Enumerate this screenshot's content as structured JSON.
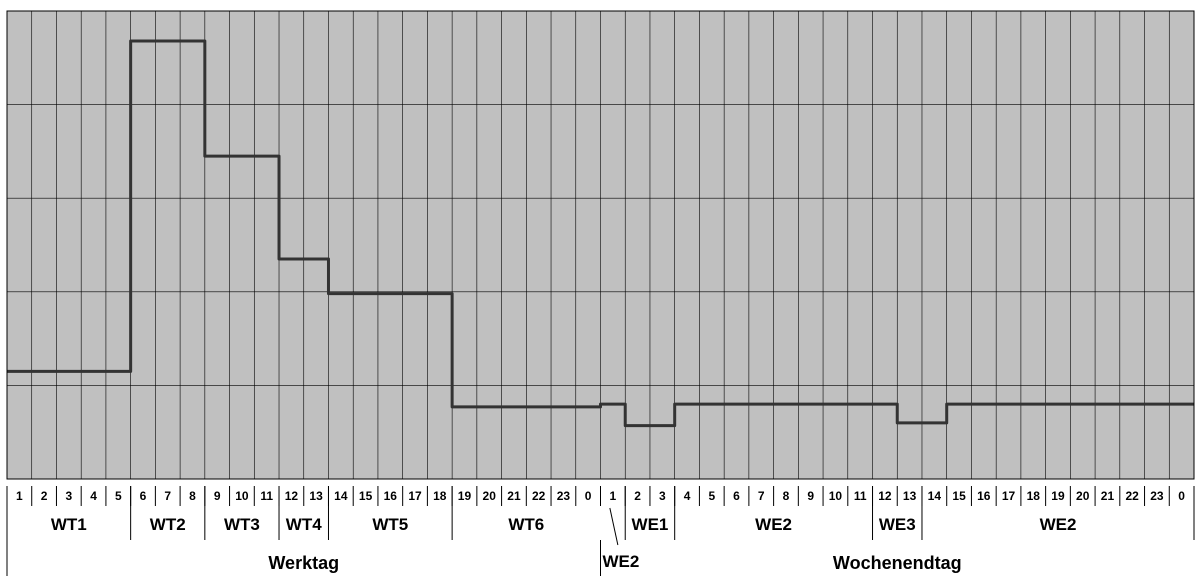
{
  "chart_data": {
    "type": "line",
    "title": "",
    "xlabel": "",
    "ylabel": "",
    "ylim": [
      0,
      5
    ],
    "grid": true,
    "y_tick_labels_shown": false,
    "colors": {
      "plot_background": "#c0c0c0",
      "line": "#333333",
      "grid": "#000000"
    },
    "hour_labels": [
      "1",
      "2",
      "3",
      "4",
      "5",
      "6",
      "7",
      "8",
      "9",
      "10",
      "11",
      "12",
      "13",
      "14",
      "15",
      "16",
      "17",
      "18",
      "19",
      "20",
      "21",
      "22",
      "23",
      "0",
      "1",
      "2",
      "3",
      "4",
      "5",
      "6",
      "7",
      "8",
      "9",
      "10",
      "11",
      "12",
      "13",
      "14",
      "15",
      "16",
      "17",
      "18",
      "19",
      "20",
      "21",
      "22",
      "23",
      "0"
    ],
    "series": [
      {
        "values": [
          1.15,
          1.15,
          1.15,
          1.15,
          1.15,
          4.68,
          4.68,
          4.68,
          3.45,
          3.45,
          3.45,
          2.35,
          2.35,
          1.98,
          1.98,
          1.98,
          1.98,
          1.98,
          0.77,
          0.77,
          0.77,
          0.77,
          0.77,
          0.77,
          0.8,
          0.57,
          0.57,
          0.8,
          0.8,
          0.8,
          0.8,
          0.8,
          0.8,
          0.8,
          0.8,
          0.8,
          0.6,
          0.6,
          0.8,
          0.8,
          0.8,
          0.8,
          0.8,
          0.8,
          0.8,
          0.8,
          0.8,
          0.8
        ]
      }
    ],
    "groups": [
      {
        "label": "WT1",
        "start": 0,
        "end": 5
      },
      {
        "label": "WT2",
        "start": 5,
        "end": 8
      },
      {
        "label": "WT3",
        "start": 8,
        "end": 11
      },
      {
        "label": "WT4",
        "start": 11,
        "end": 13
      },
      {
        "label": "WT5",
        "start": 13,
        "end": 18
      },
      {
        "label": "WT6",
        "start": 18,
        "end": 24
      },
      {
        "label": "WE1",
        "start": 25,
        "end": 27
      },
      {
        "label": "WE2",
        "start": 27,
        "end": 35
      },
      {
        "label": "WE3",
        "start": 35,
        "end": 37
      },
      {
        "label": "WE2",
        "start": 37,
        "end": 48
      }
    ],
    "we2_callout": {
      "label": "WE2",
      "hour_index": 24
    },
    "sections": [
      {
        "label": "Werktag",
        "start": 0,
        "end": 24
      },
      {
        "label": "Wochenendtag",
        "start": 24,
        "end": 48
      }
    ]
  }
}
